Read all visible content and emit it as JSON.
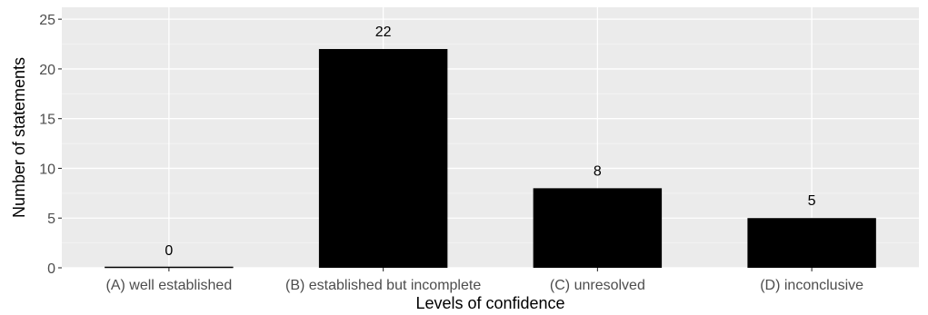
{
  "chart_data": {
    "type": "bar",
    "categories": [
      "(A) well established",
      "(B) established but incomplete",
      "(C) unresolved",
      "(D) inconclusive"
    ],
    "values": [
      0,
      22,
      8,
      5
    ],
    "data_labels": [
      "0",
      "22",
      "8",
      "5"
    ],
    "title": "",
    "xlabel": "Levels of confidence",
    "ylabel": "Number of statements",
    "ylim": [
      0,
      26.2
    ],
    "yticks": [
      0,
      5,
      10,
      15,
      20,
      25
    ],
    "ytick_labels": [
      "0",
      "5",
      "10",
      "15",
      "20",
      "25"
    ],
    "grid": true,
    "legend": "none",
    "colors": {
      "bar_fill": "#000000",
      "panel_background": "#ebebeb",
      "major_grid": "#ffffff",
      "minor_grid": "#f5f5f5",
      "tick_mark": "#333333",
      "tick_label": "#4d4d4d"
    }
  }
}
